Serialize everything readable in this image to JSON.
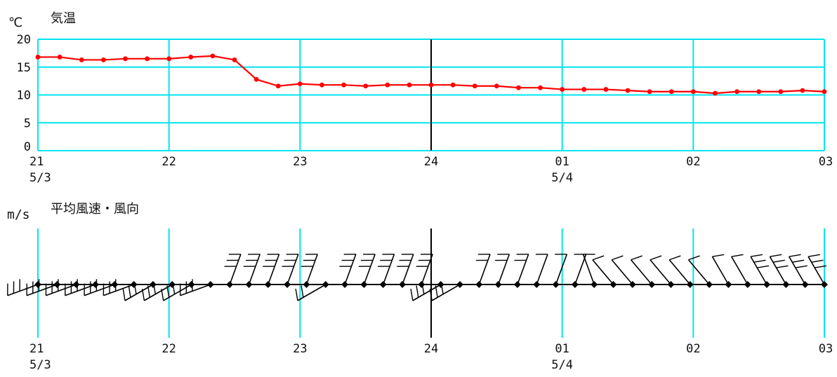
{
  "chart_data": [
    {
      "type": "line",
      "title": "気温",
      "unit": "℃",
      "ylim": [
        0,
        20
      ],
      "y_ticks": [
        "0",
        "5",
        "10",
        "15",
        "20"
      ],
      "x_ticks": [
        "21",
        "22",
        "23",
        "24",
        "01",
        "02",
        "03"
      ],
      "date_labels": [
        {
          "at": "21",
          "text": "5/3"
        },
        {
          "at": "01",
          "text": "5/4"
        }
      ],
      "grid": true,
      "color": "#ff0000",
      "series": [
        {
          "values": [
            16.8,
            16.8,
            16.3,
            16.3,
            16.5,
            16.5,
            16.5,
            16.8,
            17.0,
            16.3,
            12.8,
            11.6,
            12.0,
            11.8,
            11.8,
            11.6,
            11.8,
            11.8,
            11.8,
            11.8,
            11.6,
            11.6,
            11.3,
            11.3,
            11.0,
            11.0,
            11.0,
            10.8,
            10.6,
            10.6,
            10.6,
            10.3,
            10.6,
            10.6,
            10.6,
            10.8,
            10.6
          ]
        }
      ]
    },
    {
      "type": "scatter",
      "title": "平均風速・風向",
      "unit": "m/s",
      "x_ticks": [
        "21",
        "22",
        "23",
        "24",
        "01",
        "02",
        "03"
      ],
      "date_labels": [
        {
          "at": "21",
          "text": "5/3"
        },
        {
          "at": "01",
          "text": "5/4"
        }
      ],
      "grid": true,
      "color": "#000000",
      "wind_dir_deg": [
        250,
        250,
        250,
        250,
        250,
        250,
        240,
        240,
        240,
        250,
        20,
        20,
        20,
        20,
        20,
        240,
        20,
        20,
        20,
        20,
        20,
        240,
        240,
        20,
        20,
        20,
        20,
        20,
        20,
        340,
        320,
        320,
        320,
        320,
        320,
        320,
        330,
        330,
        330,
        330,
        330,
        330
      ],
      "wind_barbs": [
        3,
        3,
        3,
        3,
        3,
        3,
        3,
        3,
        3,
        3,
        3,
        3,
        3,
        3,
        3,
        2,
        3,
        3,
        3,
        3,
        3,
        3,
        3,
        2,
        2,
        2,
        1,
        1,
        1,
        1,
        1,
        1,
        1,
        1,
        1,
        1,
        1,
        1,
        3,
        3,
        3,
        3
      ]
    }
  ]
}
